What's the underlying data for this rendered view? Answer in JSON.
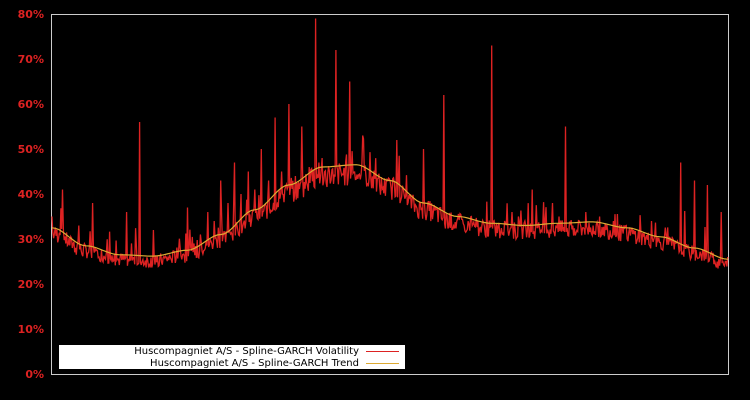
{
  "chart_data": {
    "type": "line",
    "title": "",
    "xlabel": "",
    "ylabel": "",
    "ylim": [
      0,
      80
    ],
    "yticks": [
      "0%",
      "10%",
      "20%",
      "30%",
      "40%",
      "50%",
      "60%",
      "70%",
      "80%"
    ],
    "grid": false,
    "legend_position": "lower left",
    "x_range": [
      0,
      100
    ],
    "series": [
      {
        "name": "Huscompagniet A/S - Spline-GARCH Volatility",
        "color": "#dd2222",
        "x": [
          0,
          1,
          1.5,
          2,
          3,
          4,
          5,
          6,
          7,
          8,
          9,
          10,
          11,
          12,
          13,
          14,
          15,
          16,
          17,
          18,
          19,
          20,
          21,
          22,
          23,
          24,
          25,
          26,
          27,
          28,
          29,
          30,
          31,
          32,
          33,
          34,
          35,
          36,
          37,
          38,
          39,
          39.5,
          40,
          41,
          42,
          43,
          44,
          45,
          46,
          47,
          48,
          49,
          50,
          51,
          52,
          53,
          54,
          55,
          56,
          57,
          58,
          59,
          60,
          61,
          62,
          63,
          64,
          65,
          66,
          67,
          68,
          69,
          70,
          71,
          72,
          73,
          74,
          75,
          76,
          77,
          78,
          79,
          80,
          81,
          82,
          83,
          84,
          85,
          86,
          87,
          88,
          89,
          90,
          91,
          92,
          93,
          94,
          95,
          96,
          97,
          98,
          99,
          100
        ],
        "values": [
          35,
          30,
          41,
          29,
          28,
          33,
          27,
          38,
          26,
          27,
          25,
          24,
          36,
          24,
          56,
          25,
          32,
          26,
          25,
          27,
          28,
          37,
          29,
          31,
          36,
          34,
          43,
          38,
          47,
          40,
          45,
          41,
          50,
          43,
          57,
          45,
          60,
          44,
          55,
          46,
          79,
          47,
          48,
          45,
          72,
          44,
          65,
          42,
          53,
          41,
          40,
          38,
          36,
          52,
          35,
          34,
          33,
          50,
          32,
          33,
          62,
          31,
          34,
          33,
          35,
          34,
          32,
          73,
          33,
          34,
          36,
          35,
          34,
          41,
          33,
          34,
          38,
          35,
          55,
          33,
          34,
          36,
          33,
          35,
          32,
          34,
          31,
          33,
          30,
          31,
          29,
          30,
          28,
          28,
          27,
          47,
          27,
          43,
          26,
          42,
          25,
          36,
          26
        ]
      },
      {
        "name": "Huscompagniet A/S - Spline-GARCH Trend",
        "color": "#ddaa33",
        "x": [
          0,
          5,
          10,
          15,
          20,
          25,
          30,
          35,
          40,
          45,
          50,
          55,
          60,
          65,
          70,
          75,
          80,
          85,
          90,
          95,
          100
        ],
        "values": [
          32.5,
          28.5,
          26.5,
          26.2,
          27.5,
          31,
          36.5,
          42,
          46,
          46.5,
          43,
          38,
          35,
          33.5,
          33,
          33.5,
          33.8,
          32.5,
          30.5,
          28,
          25.5
        ]
      }
    ]
  },
  "legend": {
    "items": [
      {
        "label": "Huscompagniet A/S - Spline-GARCH Volatility",
        "color": "#dd2222"
      },
      {
        "label": "Huscompagniet A/S - Spline-GARCH Trend",
        "color": "#ddaa33"
      }
    ]
  }
}
